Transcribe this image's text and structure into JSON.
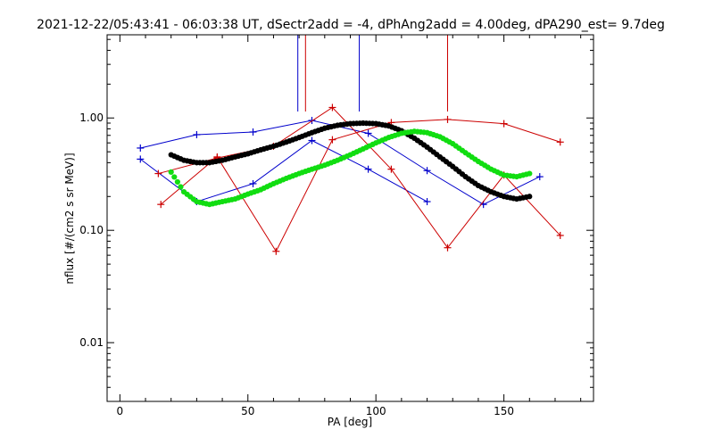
{
  "chart_data": {
    "type": "scatter",
    "title": "2021-12-22/05:43:41 - 06:03:38 UT, dSectr2add = -4, dPhAng2add = 4.00deg, dPA290_est=   9.7deg",
    "xlabel": "PA [deg]",
    "ylabel": "nflux [#/(cm2 s sr MeV)]",
    "xlim": [
      -5,
      185
    ],
    "ylim": [
      0.003,
      5.5
    ],
    "y_scale": "log",
    "x_ticks": [
      0,
      50,
      100,
      150
    ],
    "x_tick_labels": [
      "0",
      "50",
      "100",
      "150"
    ],
    "y_ticks": [
      0.01,
      0.1,
      1.0
    ],
    "y_tick_labels": [
      "0.01",
      "0.10",
      "1.00"
    ],
    "grid": false,
    "top_markers": [
      {
        "x": 69.5,
        "color": "#0000cc"
      },
      {
        "x": 72.5,
        "color": "#cc0000"
      },
      {
        "x": 93.5,
        "color": "#0000cc"
      },
      {
        "x": 128.0,
        "color": "#cc0000"
      }
    ],
    "series": [
      {
        "style": "line+cross",
        "color": "#0000cc",
        "x": [
          8,
          30,
          52,
          75,
          97,
          120,
          142,
          164
        ],
        "y": [
          0.54,
          0.71,
          0.75,
          0.95,
          0.73,
          0.34,
          0.17,
          0.3
        ]
      },
      {
        "style": "line+cross",
        "color": "#0000cc",
        "x": [
          8,
          30,
          52,
          75,
          97,
          120
        ],
        "y": [
          0.43,
          0.18,
          0.26,
          0.63,
          0.35,
          0.18
        ]
      },
      {
        "style": "line+cross",
        "color": "#cc0000",
        "x": [
          15,
          38,
          60,
          83,
          106,
          128,
          150,
          172
        ],
        "y": [
          0.32,
          0.44,
          0.56,
          1.24,
          0.35,
          0.07,
          0.31,
          0.09
        ]
      },
      {
        "style": "line+cross",
        "color": "#cc0000",
        "x": [
          16,
          38,
          61,
          83,
          106,
          128,
          150,
          172
        ],
        "y": [
          0.17,
          0.45,
          0.065,
          0.64,
          0.91,
          0.97,
          0.89,
          0.61
        ]
      },
      {
        "style": "dots",
        "color": "#000000",
        "x": [
          20,
          25,
          30,
          35,
          40,
          45,
          50,
          55,
          60,
          65,
          70,
          75,
          80,
          85,
          90,
          95,
          100,
          105,
          110,
          115,
          120,
          125,
          130,
          135,
          140,
          145,
          150,
          155,
          160
        ],
        "y": [
          0.47,
          0.42,
          0.4,
          0.4,
          0.42,
          0.45,
          0.48,
          0.52,
          0.56,
          0.61,
          0.67,
          0.74,
          0.81,
          0.86,
          0.89,
          0.9,
          0.89,
          0.85,
          0.77,
          0.66,
          0.55,
          0.45,
          0.37,
          0.3,
          0.25,
          0.22,
          0.2,
          0.19,
          0.2
        ]
      },
      {
        "style": "dots",
        "color": "#11dd11",
        "x": [
          20,
          25,
          30,
          35,
          40,
          45,
          50,
          55,
          60,
          65,
          70,
          75,
          80,
          85,
          90,
          95,
          100,
          105,
          110,
          115,
          120,
          125,
          130,
          135,
          140,
          145,
          150,
          155,
          160
        ],
        "y": [
          0.33,
          0.22,
          0.18,
          0.17,
          0.18,
          0.19,
          0.21,
          0.23,
          0.26,
          0.29,
          0.32,
          0.35,
          0.38,
          0.42,
          0.47,
          0.53,
          0.6,
          0.67,
          0.73,
          0.76,
          0.74,
          0.68,
          0.59,
          0.49,
          0.41,
          0.35,
          0.31,
          0.3,
          0.32
        ]
      }
    ]
  }
}
